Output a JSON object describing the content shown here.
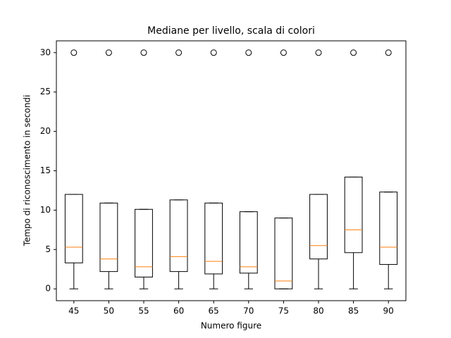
{
  "chart_data": {
    "type": "box",
    "title": "Mediane per livello, scala di colori",
    "x_label": "Numero figure",
    "y_label": "Tempo di riconoscimento in secondi",
    "categories": [
      "45",
      "50",
      "55",
      "60",
      "65",
      "70",
      "75",
      "80",
      "85",
      "90"
    ],
    "boxes": [
      {
        "whislo": 0,
        "q1": 3.3,
        "med": 5.3,
        "q3": 12.0,
        "whishi": 12.0,
        "fliers": [
          30
        ]
      },
      {
        "whislo": 0,
        "q1": 2.2,
        "med": 3.8,
        "q3": 10.9,
        "whishi": 10.9,
        "fliers": [
          30
        ]
      },
      {
        "whislo": 0,
        "q1": 1.5,
        "med": 2.8,
        "q3": 10.1,
        "whishi": 10.1,
        "fliers": [
          30
        ]
      },
      {
        "whislo": 0,
        "q1": 2.2,
        "med": 4.1,
        "q3": 11.3,
        "whishi": 11.3,
        "fliers": [
          30
        ]
      },
      {
        "whislo": 0,
        "q1": 1.9,
        "med": 3.5,
        "q3": 10.9,
        "whishi": 10.9,
        "fliers": [
          30
        ]
      },
      {
        "whislo": 0,
        "q1": 2.0,
        "med": 2.8,
        "q3": 9.8,
        "whishi": 9.8,
        "fliers": [
          30
        ]
      },
      {
        "whislo": 0,
        "q1": 0,
        "med": 1.0,
        "q3": 9.0,
        "whishi": 9.0,
        "fliers": [
          30
        ]
      },
      {
        "whislo": 0,
        "q1": 3.8,
        "med": 5.5,
        "q3": 12.0,
        "whishi": 12.0,
        "fliers": [
          30
        ]
      },
      {
        "whislo": 0,
        "q1": 4.6,
        "med": 7.5,
        "q3": 14.2,
        "whishi": 14.2,
        "fliers": [
          30
        ]
      },
      {
        "whislo": 0,
        "q1": 3.1,
        "med": 5.3,
        "q3": 12.3,
        "whishi": 12.3,
        "fliers": [
          30
        ]
      }
    ],
    "box_color": "#000000",
    "median_color": "#ff7f0e",
    "ylim": [
      -1.5,
      31.5
    ],
    "yticks": [
      0,
      5,
      10,
      15,
      20,
      25,
      30
    ],
    "grid": false
  }
}
